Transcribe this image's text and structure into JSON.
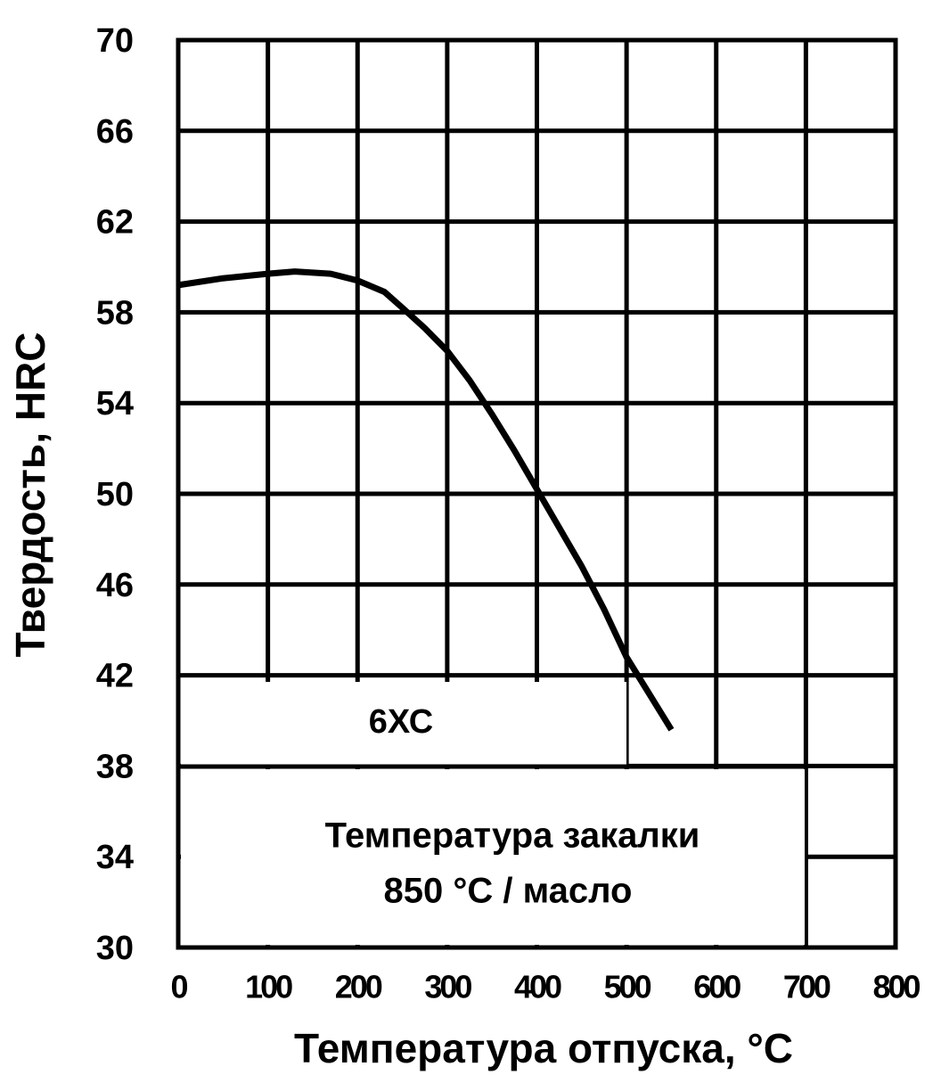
{
  "chart_data": {
    "type": "line",
    "y_label": "Твердость, HRC",
    "x_label": "Температура отпуска, °C",
    "annotations": [
      "6ХС",
      "Температура закалки",
      "850 °C / масло"
    ],
    "x": [
      0,
      50,
      100,
      130,
      170,
      200,
      230,
      250,
      275,
      300,
      325,
      350,
      375,
      400,
      425,
      450,
      475,
      500,
      525,
      550
    ],
    "series": [
      {
        "name": "6ХС",
        "color": "#000000",
        "values": [
          59.2,
          59.5,
          59.7,
          59.8,
          59.7,
          59.4,
          58.9,
          58.2,
          57.3,
          56.3,
          55.0,
          53.5,
          51.9,
          50.2,
          48.5,
          46.8,
          44.9,
          42.8,
          41.2,
          39.6
        ]
      }
    ],
    "xlim": [
      0,
      800
    ],
    "xticks": [
      0,
      100,
      200,
      300,
      400,
      500,
      600,
      700,
      800
    ],
    "ylim": [
      30,
      70
    ],
    "yticks": [
      30,
      34,
      38,
      42,
      46,
      50,
      54,
      58,
      62,
      66,
      70
    ],
    "grid": true
  }
}
